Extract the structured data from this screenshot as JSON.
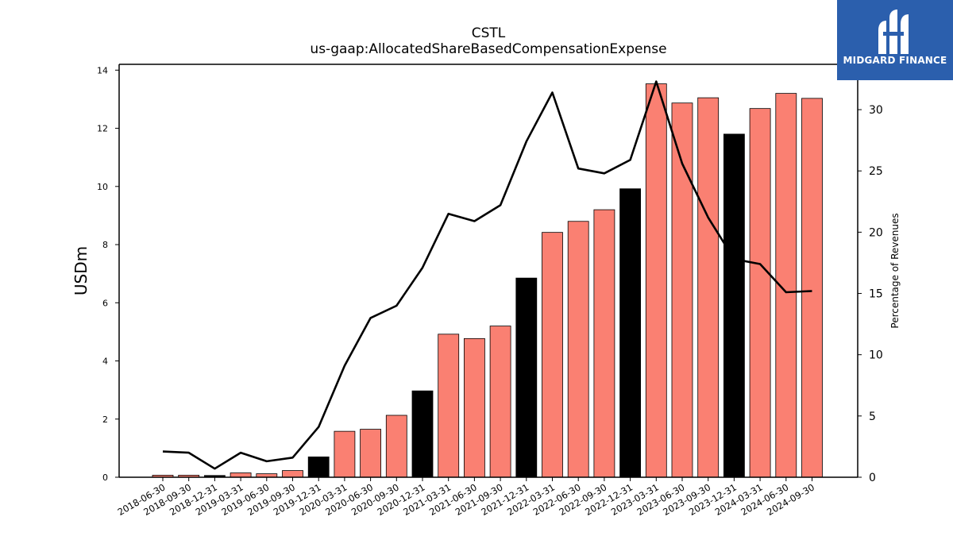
{
  "header": {
    "title": "CSTL",
    "subtitle": "us-gaap:AllocatedShareBasedCompensationExpense"
  },
  "brand": {
    "name": "MIDGARD FINANCE",
    "color": "#2b5fad"
  },
  "chart_data": {
    "type": "bar",
    "title": "CSTL",
    "subtitle": "us-gaap:AllocatedShareBasedCompensationExpense",
    "categories": [
      "2018-06-30",
      "2018-09-30",
      "2018-12-31",
      "2019-03-31",
      "2019-06-30",
      "2019-09-30",
      "2019-12-31",
      "2020-03-31",
      "2020-06-30",
      "2020-09-30",
      "2020-12-31",
      "2021-03-31",
      "2021-06-30",
      "2021-09-30",
      "2021-12-31",
      "2022-03-31",
      "2022-06-30",
      "2022-09-30",
      "2022-12-31",
      "2023-03-31",
      "2023-06-30",
      "2023-09-30",
      "2023-12-31",
      "2024-03-31",
      "2024-06-30",
      "2024-09-30"
    ],
    "series": [
      {
        "type": "bar",
        "axis": "left",
        "values": [
          0.07,
          0.07,
          0.06,
          0.15,
          0.12,
          0.23,
          0.7,
          1.58,
          1.65,
          2.13,
          2.97,
          4.92,
          4.77,
          5.2,
          6.85,
          8.42,
          8.8,
          9.2,
          9.92,
          13.53,
          12.87,
          13.05,
          11.8,
          12.68,
          13.2,
          13.03
        ],
        "colors": [
          "#fa8072",
          "#fa8072",
          "#000000",
          "#fa8072",
          "#fa8072",
          "#fa8072",
          "#000000",
          "#fa8072",
          "#fa8072",
          "#fa8072",
          "#000000",
          "#fa8072",
          "#fa8072",
          "#fa8072",
          "#000000",
          "#fa8072",
          "#fa8072",
          "#fa8072",
          "#000000",
          "#fa8072",
          "#fa8072",
          "#fa8072",
          "#000000",
          "#fa8072",
          "#fa8072",
          "#fa8072"
        ]
      },
      {
        "type": "line",
        "axis": "right",
        "color": "#000000",
        "values": [
          2.1,
          2.0,
          0.7,
          2.0,
          1.3,
          1.6,
          4.1,
          9.1,
          13.0,
          14.0,
          17.1,
          21.5,
          20.9,
          22.2,
          27.4,
          31.4,
          25.2,
          24.8,
          25.9,
          32.3,
          25.6,
          21.2,
          17.8,
          17.4,
          15.1,
          15.2
        ]
      }
    ],
    "ylabel": "USDm",
    "ylabel_right": "Percentage of Revenues",
    "ylim": [
      0,
      14.2
    ],
    "ylim_right": [
      0,
      33.7
    ],
    "yticks": [
      0,
      2,
      4,
      6,
      8,
      10,
      12,
      14
    ],
    "yticks_right": [
      0,
      5,
      10,
      15,
      20,
      25,
      30
    ],
    "grid": false,
    "legend": "none"
  }
}
